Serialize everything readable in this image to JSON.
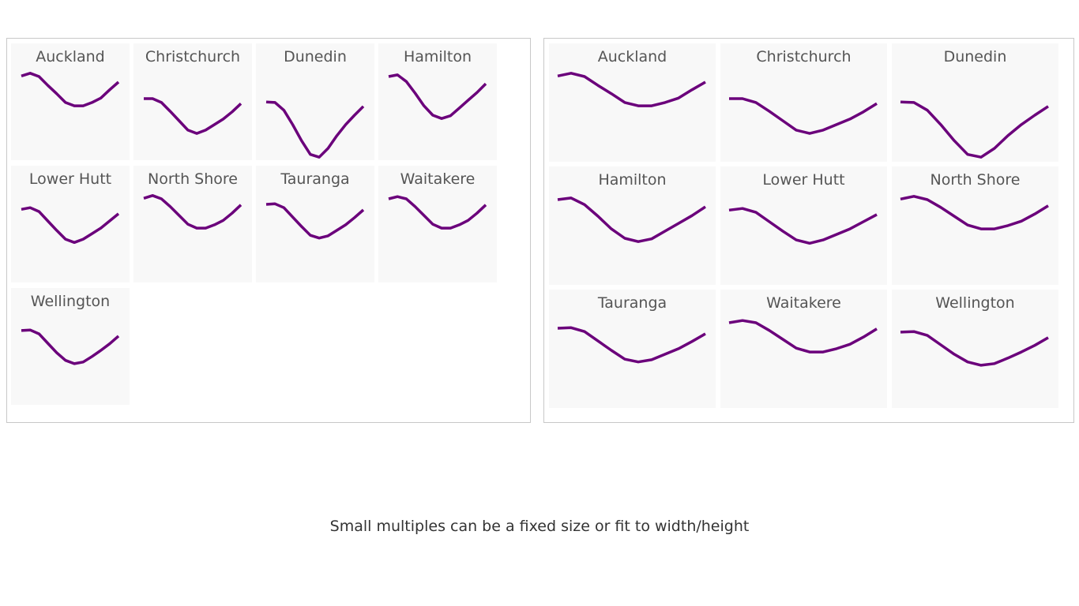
{
  "chart_data": [
    {
      "type": "line",
      "layout": "small-multiples",
      "mode": "fixed size",
      "columns": 4,
      "x": [
        1,
        2,
        3,
        4,
        5,
        6,
        7,
        8,
        9,
        10,
        11,
        12
      ],
      "ylim": [
        4,
        20
      ],
      "line_color": "#6b007b"
    },
    {
      "type": "line",
      "layout": "small-multiples",
      "mode": "fit to width/height",
      "columns": 3,
      "x": [
        1,
        2,
        3,
        4,
        5,
        6,
        7,
        8,
        9,
        10,
        11,
        12
      ],
      "ylim": [
        4,
        20
      ],
      "line_color": "#6b007b"
    }
  ],
  "series": [
    {
      "name": "Auckland",
      "values": [
        19.1,
        19.6,
        19.0,
        17.4,
        15.9,
        14.3,
        13.7,
        13.7,
        14.3,
        15.1,
        16.6,
        18.0
      ]
    },
    {
      "name": "Christchurch",
      "values": [
        15.0,
        15.0,
        14.3,
        12.7,
        11.0,
        9.3,
        8.7,
        9.3,
        10.3,
        11.3,
        12.6,
        14.1
      ]
    },
    {
      "name": "Dunedin",
      "values": [
        14.4,
        14.3,
        12.9,
        10.3,
        7.4,
        4.9,
        4.4,
        6.0,
        8.3,
        10.3,
        12.0,
        13.6
      ]
    },
    {
      "name": "Hamilton",
      "values": [
        19.0,
        19.3,
        18.1,
        16.0,
        13.7,
        12.0,
        11.4,
        11.9,
        13.3,
        14.7,
        16.1,
        17.7
      ]
    },
    {
      "name": "Lower Hutt",
      "values": [
        17.1,
        17.4,
        16.7,
        15.0,
        13.3,
        11.7,
        11.1,
        11.7,
        12.7,
        13.7,
        15.0,
        16.3
      ]
    },
    {
      "name": "North Shore",
      "values": [
        19.1,
        19.6,
        19.0,
        17.6,
        16.0,
        14.4,
        13.7,
        13.7,
        14.3,
        15.1,
        16.4,
        17.9
      ]
    },
    {
      "name": "Tauranga",
      "values": [
        18.0,
        18.1,
        17.4,
        15.7,
        14.0,
        12.4,
        11.9,
        12.3,
        13.3,
        14.3,
        15.6,
        17.0
      ]
    },
    {
      "name": "Waitakere",
      "values": [
        19.0,
        19.4,
        19.0,
        17.6,
        16.0,
        14.4,
        13.7,
        13.7,
        14.3,
        15.1,
        16.4,
        17.9
      ]
    },
    {
      "name": "Wellington",
      "values": [
        17.3,
        17.4,
        16.7,
        15.0,
        13.3,
        11.9,
        11.3,
        11.6,
        12.6,
        13.7,
        14.9,
        16.3
      ]
    }
  ],
  "caption": "Small multiples can be a fixed size or fit to width/height"
}
